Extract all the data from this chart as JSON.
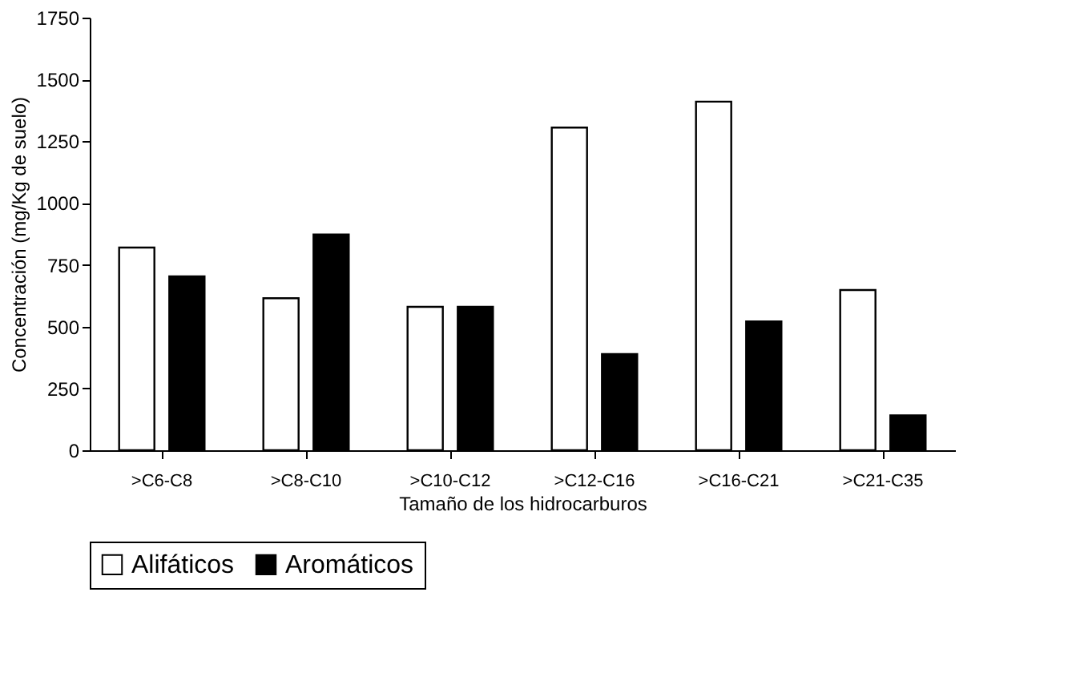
{
  "chart_data": {
    "type": "bar",
    "xlabel": "Tamaño de los hidrocarburos",
    "ylabel": "Concentración (mg/Kg de suelo)",
    "categories": [
      ">C6-C8",
      ">C8-C10",
      ">C10-C12",
      ">C12-C16",
      ">C16-C21",
      ">C21-C35"
    ],
    "series": [
      {
        "name": "Alifáticos",
        "color": "#ffffff",
        "values": [
          820,
          615,
          580,
          1305,
          1410,
          648
        ]
      },
      {
        "name": "Aromáticos",
        "color": "#000000",
        "values": [
          703,
          873,
          580,
          389,
          521,
          141
        ]
      }
    ],
    "ylim": [
      0,
      1750
    ],
    "yticks": [
      0,
      250,
      500,
      750,
      1000,
      1250,
      1500,
      1750
    ],
    "grid": false,
    "legend": "bottom"
  }
}
